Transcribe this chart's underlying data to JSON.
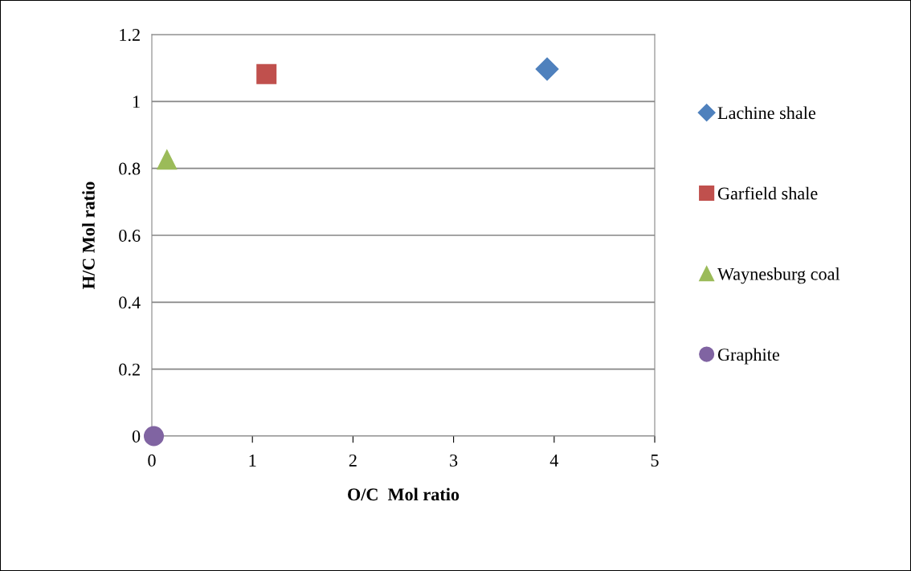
{
  "chart_data": {
    "type": "scatter",
    "xlabel": "O/C  Mol ratio",
    "ylabel": "H/C Mol ratio",
    "xlim": [
      0,
      5
    ],
    "xticks": [
      0,
      1,
      2,
      3,
      4,
      5
    ],
    "ylim": [
      0,
      1.2
    ],
    "yticks": [
      0,
      0.2,
      0.4,
      0.6,
      0.8,
      1,
      1.2
    ],
    "grid": "y",
    "legend": "right",
    "series": [
      {
        "name": "Lachine shale",
        "color": "#4f81bd",
        "marker": "diamond",
        "x": [
          3.93
        ],
        "values": [
          1.097
        ]
      },
      {
        "name": "Garfield shale",
        "color": "#c0504d",
        "marker": "square",
        "x": [
          1.14
        ],
        "values": [
          1.082
        ]
      },
      {
        "name": "Waynesburg coal",
        "color": "#9bbb59",
        "marker": "triangle",
        "x": [
          0.15
        ],
        "values": [
          0.826
        ]
      },
      {
        "name": "Graphite",
        "color": "#8064a2",
        "marker": "circle",
        "x": [
          0.02
        ],
        "values": [
          0
        ]
      }
    ]
  }
}
